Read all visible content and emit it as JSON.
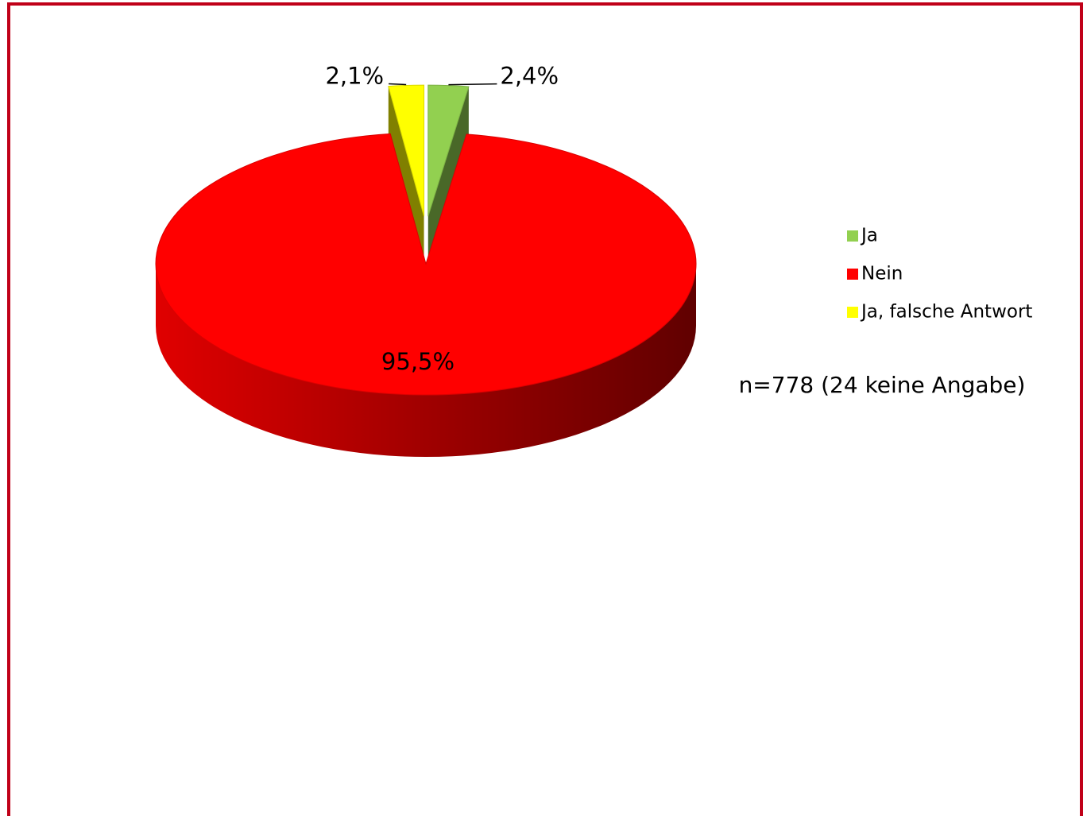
{
  "chart_data": {
    "type": "pie3d",
    "categories": [
      "Ja",
      "Nein",
      "Ja, falsche Antwort"
    ],
    "values": [
      2.4,
      95.5,
      2.1
    ],
    "value_labels": [
      "2,4%",
      "95,5%",
      "2,1%"
    ],
    "colors": [
      "#92d050",
      "#ff0000",
      "#ffff00"
    ],
    "legend": "right",
    "annotation": "n=778 (24 keine Angabe)"
  }
}
